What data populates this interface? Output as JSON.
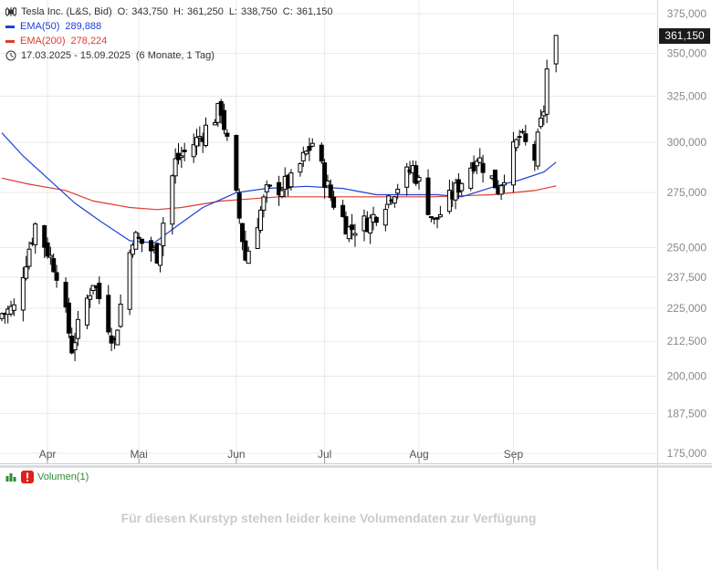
{
  "legend": {
    "title": "Tesla Inc. (L&S, Bid)",
    "ohlc": [
      {
        "label": "O:",
        "value": "343,750"
      },
      {
        "label": "H:",
        "value": "361,250"
      },
      {
        "label": "L:",
        "value": "338,750"
      },
      {
        "label": "C:",
        "value": "361,150"
      }
    ],
    "ema50": {
      "label": "EMA(50)",
      "value": "289,888",
      "color": "#1f3fd6"
    },
    "ema200": {
      "label": "EMA(200)",
      "value": "278,224",
      "color": "#e03a2f"
    },
    "range": "17.03.2025 - 15.09.2025",
    "period": "(6 Monate, 1 Tag)"
  },
  "current_price_label": "361,150",
  "volume": {
    "label": "Volumen(1)",
    "message": "Für diesen Kurstyp stehen leider keine Volumendaten zur Verfügung"
  },
  "colors": {
    "up_fill": "#ffffff",
    "down_fill": "#000000",
    "ema50": "#1f3fd6",
    "ema200": "#e03a2f",
    "grid": "#e9e9e9"
  },
  "chart_data": {
    "type": "candlestick",
    "scale": "log",
    "ylim": [
      173,
      380
    ],
    "y_ticks": [
      375000,
      350000,
      325000,
      300000,
      275000,
      250000,
      237500,
      225000,
      212500,
      200000,
      187500,
      175000
    ],
    "y_tick_labels": [
      "375,000",
      "350,000",
      "325,000",
      "300,000",
      "275,000",
      "250,000",
      "237,500",
      "225,000",
      "212,500",
      "200,000",
      "187,500",
      "175,000"
    ],
    "x_ticks": [
      "Apr",
      "Mai",
      "Jun",
      "Jul",
      "Aug",
      "Sep"
    ],
    "x_tick_dates": [
      "2025-04-01",
      "2025-05-01",
      "2025-06-02",
      "2025-07-01",
      "2025-08-01",
      "2025-09-01"
    ],
    "series": [
      {
        "name": "Tesla Inc. (L&S, Bid)",
        "close": [
          {
            "date": "2025-03-17",
            "value": 223
          },
          {
            "date": "2025-03-21",
            "value": 225
          },
          {
            "date": "2025-03-28",
            "value": 260
          },
          {
            "date": "2025-04-04",
            "value": 240
          },
          {
            "date": "2025-04-09",
            "value": 210
          },
          {
            "date": "2025-04-16",
            "value": 236
          },
          {
            "date": "2025-04-23",
            "value": 212
          },
          {
            "date": "2025-04-29",
            "value": 255
          },
          {
            "date": "2025-05-07",
            "value": 247
          },
          {
            "date": "2025-05-13",
            "value": 290
          },
          {
            "date": "2025-05-20",
            "value": 301
          },
          {
            "date": "2025-05-28",
            "value": 318
          },
          {
            "date": "2025-06-05",
            "value": 245
          },
          {
            "date": "2025-06-12",
            "value": 275
          },
          {
            "date": "2025-06-20",
            "value": 280
          },
          {
            "date": "2025-06-27",
            "value": 300
          },
          {
            "date": "2025-07-03",
            "value": 273
          },
          {
            "date": "2025-07-09",
            "value": 258
          },
          {
            "date": "2025-07-16",
            "value": 262
          },
          {
            "date": "2025-07-23",
            "value": 275
          },
          {
            "date": "2025-07-30",
            "value": 287
          },
          {
            "date": "2025-08-06",
            "value": 261
          },
          {
            "date": "2025-08-13",
            "value": 276
          },
          {
            "date": "2025-08-20",
            "value": 293
          },
          {
            "date": "2025-08-27",
            "value": 277
          },
          {
            "date": "2025-09-03",
            "value": 303
          },
          {
            "date": "2025-09-08",
            "value": 292
          },
          {
            "date": "2025-09-11",
            "value": 318
          },
          {
            "date": "2025-09-12",
            "value": 340
          },
          {
            "date": "2025-09-15",
            "value": 361.15
          }
        ]
      },
      {
        "name": "EMA(50)",
        "values": [
          {
            "date": "2025-03-17",
            "value": 305
          },
          {
            "date": "2025-03-24",
            "value": 293
          },
          {
            "date": "2025-04-01",
            "value": 282
          },
          {
            "date": "2025-04-10",
            "value": 270
          },
          {
            "date": "2025-04-18",
            "value": 262
          },
          {
            "date": "2025-04-28",
            "value": 253
          },
          {
            "date": "2025-05-06",
            "value": 252
          },
          {
            "date": "2025-05-14",
            "value": 260
          },
          {
            "date": "2025-05-22",
            "value": 268
          },
          {
            "date": "2025-06-02",
            "value": 275
          },
          {
            "date": "2025-06-12",
            "value": 277
          },
          {
            "date": "2025-06-25",
            "value": 278
          },
          {
            "date": "2025-07-07",
            "value": 277
          },
          {
            "date": "2025-07-18",
            "value": 274
          },
          {
            "date": "2025-07-28",
            "value": 274
          },
          {
            "date": "2025-08-07",
            "value": 274
          },
          {
            "date": "2025-08-15",
            "value": 273
          },
          {
            "date": "2025-08-26",
            "value": 278
          },
          {
            "date": "2025-09-03",
            "value": 281
          },
          {
            "date": "2025-09-11",
            "value": 285
          },
          {
            "date": "2025-09-15",
            "value": 289.888
          }
        ]
      },
      {
        "name": "EMA(200)",
        "values": [
          {
            "date": "2025-03-17",
            "value": 282
          },
          {
            "date": "2025-03-26",
            "value": 279
          },
          {
            "date": "2025-04-07",
            "value": 276
          },
          {
            "date": "2025-04-16",
            "value": 271
          },
          {
            "date": "2025-04-28",
            "value": 268
          },
          {
            "date": "2025-05-07",
            "value": 267
          },
          {
            "date": "2025-05-15",
            "value": 268
          },
          {
            "date": "2025-05-28",
            "value": 271
          },
          {
            "date": "2025-06-16",
            "value": 273
          },
          {
            "date": "2025-07-10",
            "value": 273
          },
          {
            "date": "2025-08-05",
            "value": 273
          },
          {
            "date": "2025-08-25",
            "value": 274
          },
          {
            "date": "2025-09-08",
            "value": 276
          },
          {
            "date": "2025-09-15",
            "value": 278.224
          }
        ]
      }
    ]
  }
}
